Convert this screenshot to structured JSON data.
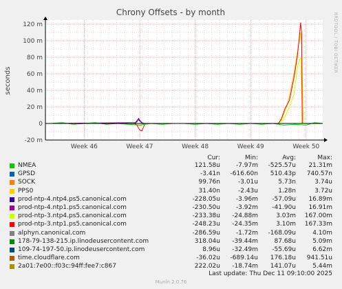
{
  "side_label": "RRDTOOL / TOBI OETIKER",
  "chart_data": {
    "type": "line",
    "title": "Chrony Offsets - by month",
    "ylabel": "seconds",
    "ylim": [
      -20,
      125
    ],
    "yticks": [
      -20,
      0,
      20,
      40,
      60,
      80,
      100,
      120
    ],
    "ytick_labels": [
      "-20 m",
      "0",
      "20 m",
      "40 m",
      "60 m",
      "80 m",
      "100 m",
      "120 m"
    ],
    "xlim": [
      45.3,
      50.3
    ],
    "xticks": [
      46,
      47,
      48,
      49,
      50
    ],
    "xtick_labels": [
      "Week 46",
      "Week 47",
      "Week 48",
      "Week 49",
      "Week 50"
    ],
    "grid": true,
    "series": [
      {
        "name": "PPS0",
        "color": "#ffcc00",
        "values": [
          [
            45.4,
            0
          ],
          [
            46.8,
            0
          ],
          [
            46.95,
            -1
          ],
          [
            47.02,
            -3
          ],
          [
            47.06,
            -1
          ],
          [
            47.1,
            0
          ],
          [
            49.5,
            0
          ],
          [
            49.55,
            3
          ],
          [
            49.6,
            12
          ],
          [
            49.66,
            22
          ],
          [
            49.72,
            40
          ],
          [
            49.78,
            60
          ],
          [
            49.84,
            85
          ],
          [
            49.88,
            100
          ],
          [
            49.9,
            110
          ],
          [
            49.92,
            95
          ],
          [
            49.95,
            0
          ],
          [
            50.3,
            0
          ]
        ]
      },
      {
        "name": "prod-ntp-4.ntp4.ps5.canonical.com",
        "color": "#330099",
        "values": [
          [
            45.4,
            0
          ],
          [
            46.9,
            0
          ],
          [
            46.95,
            2
          ],
          [
            46.98,
            6
          ],
          [
            47.0,
            4
          ],
          [
            47.04,
            1
          ],
          [
            47.08,
            0
          ],
          [
            50.3,
            0
          ]
        ]
      },
      {
        "name": "prod-ntp-4.ntp1.ps5.canonical.com",
        "color": "#990099",
        "values": [
          [
            45.4,
            0
          ],
          [
            46.92,
            1
          ],
          [
            46.97,
            5
          ],
          [
            47.0,
            3
          ],
          [
            47.05,
            0
          ],
          [
            50.3,
            0
          ]
        ]
      },
      {
        "name": "prod-ntp-3.ntp4.ps5.canonical.com",
        "color": "#ccff00",
        "values": [
          [
            45.4,
            0
          ],
          [
            49.5,
            0
          ],
          [
            49.6,
            5
          ],
          [
            49.7,
            20
          ],
          [
            49.78,
            35
          ],
          [
            49.85,
            70
          ],
          [
            49.9,
            80
          ],
          [
            49.94,
            0
          ],
          [
            50.3,
            0
          ]
        ]
      },
      {
        "name": "prod-ntp-3.ntp1.ps5.canonical.com",
        "color": "#ff0000",
        "values": [
          [
            45.4,
            0
          ],
          [
            46.9,
            0
          ],
          [
            46.95,
            -2
          ],
          [
            47.0,
            -8
          ],
          [
            47.04,
            -9
          ],
          [
            47.07,
            -4
          ],
          [
            47.1,
            0
          ],
          [
            49.5,
            0
          ],
          [
            49.55,
            5
          ],
          [
            49.62,
            18
          ],
          [
            49.7,
            28
          ],
          [
            49.78,
            55
          ],
          [
            49.84,
            80
          ],
          [
            49.88,
            105
          ],
          [
            49.9,
            122
          ],
          [
            49.92,
            108
          ],
          [
            49.93,
            0
          ],
          [
            50.3,
            0
          ]
        ]
      },
      {
        "name": "NMEA",
        "color": "#00cc00",
        "values": [
          [
            45.4,
            0
          ],
          [
            45.6,
            1
          ],
          [
            45.8,
            -1
          ],
          [
            46.0,
            0
          ],
          [
            46.2,
            1
          ],
          [
            46.4,
            -1
          ],
          [
            46.6,
            0
          ],
          [
            46.8,
            -1
          ],
          [
            47.0,
            -2
          ],
          [
            47.2,
            0
          ],
          [
            47.4,
            -1
          ],
          [
            47.6,
            0
          ],
          [
            47.8,
            0
          ],
          [
            48.0,
            -1
          ],
          [
            48.2,
            0
          ],
          [
            48.4,
            -1
          ],
          [
            48.6,
            0
          ],
          [
            48.8,
            -1
          ],
          [
            49.0,
            0
          ],
          [
            49.2,
            -1
          ],
          [
            49.4,
            0
          ],
          [
            49.6,
            -2
          ],
          [
            49.8,
            -1
          ],
          [
            50.0,
            -2
          ],
          [
            50.15,
            1
          ],
          [
            50.3,
            0
          ]
        ]
      }
    ]
  },
  "legend": {
    "headers": {
      "cur": "Cur:",
      "min": "Min:",
      "avg": "Avg:",
      "max": "Max:"
    },
    "rows": [
      {
        "name": "NMEA",
        "color": "#00cc00",
        "cur": "121.58u",
        "min": "-7.97m",
        "avg": "-525.57u",
        "max": "21.31m"
      },
      {
        "name": "GPSD",
        "color": "#0066b3",
        "cur": "-3.41n",
        "min": "-616.60n",
        "avg": "510.43p",
        "max": "740.57n"
      },
      {
        "name": "SOCK",
        "color": "#ff8000",
        "cur": "99.76n",
        "min": "-3.01u",
        "avg": "5.73n",
        "max": "3.74u"
      },
      {
        "name": "PPS0",
        "color": "#ffcc00",
        "cur": "31.40n",
        "min": "-2.43u",
        "avg": "1.28n",
        "max": "3.72u"
      },
      {
        "name": "prod-ntp-4.ntp4.ps5.canonical.com",
        "color": "#330099",
        "cur": "-228.05u",
        "min": "-3.96m",
        "avg": "-57.09u",
        "max": "16.89m"
      },
      {
        "name": "prod-ntp-4.ntp1.ps5.canonical.com",
        "color": "#990099",
        "cur": "-230.50u",
        "min": "-3.92m",
        "avg": "-41.90u",
        "max": "16.91m"
      },
      {
        "name": "prod-ntp-3.ntp4.ps5.canonical.com",
        "color": "#ccff00",
        "cur": "-233.38u",
        "min": "-24.88m",
        "avg": "3.03m",
        "max": "167.00m"
      },
      {
        "name": "prod-ntp-3.ntp1.ps5.canonical.com",
        "color": "#ff0000",
        "cur": "-248.23u",
        "min": "-24.35m",
        "avg": "3.10m",
        "max": "167.33m"
      },
      {
        "name": "alphyn.canonical.com",
        "color": "#808080",
        "cur": "-286.59u",
        "min": "-1.72m",
        "avg": "-168.09u",
        "max": "4.10m"
      },
      {
        "name": "178-79-138-215.ip.linodeusercontent.com",
        "color": "#008f00",
        "cur": "318.04u",
        "min": "-39.44m",
        "avg": "87.68u",
        "max": "5.09m"
      },
      {
        "name": "109-74-197-50.ip.linodeusercontent.com",
        "color": "#00487d",
        "cur": "8.96u",
        "min": "-32.49m",
        "avg": "-55.69u",
        "max": "6.62m"
      },
      {
        "name": "time.cloudflare.com",
        "color": "#b35a00",
        "cur": "-36.02u",
        "min": "-689.14u",
        "avg": "176.18u",
        "max": "941.51u"
      },
      {
        "name": "2a01:7e00::f03c:94ff:fee7:c867",
        "color": "#b38f00",
        "cur": "222.02u",
        "min": "-18.74m",
        "avg": "141.07u",
        "max": "5.44m"
      }
    ]
  },
  "footer": {
    "last_update": "Last update:  Thu Dec 11 09:10:00 2025",
    "munin": "Munin 2.0.76"
  }
}
